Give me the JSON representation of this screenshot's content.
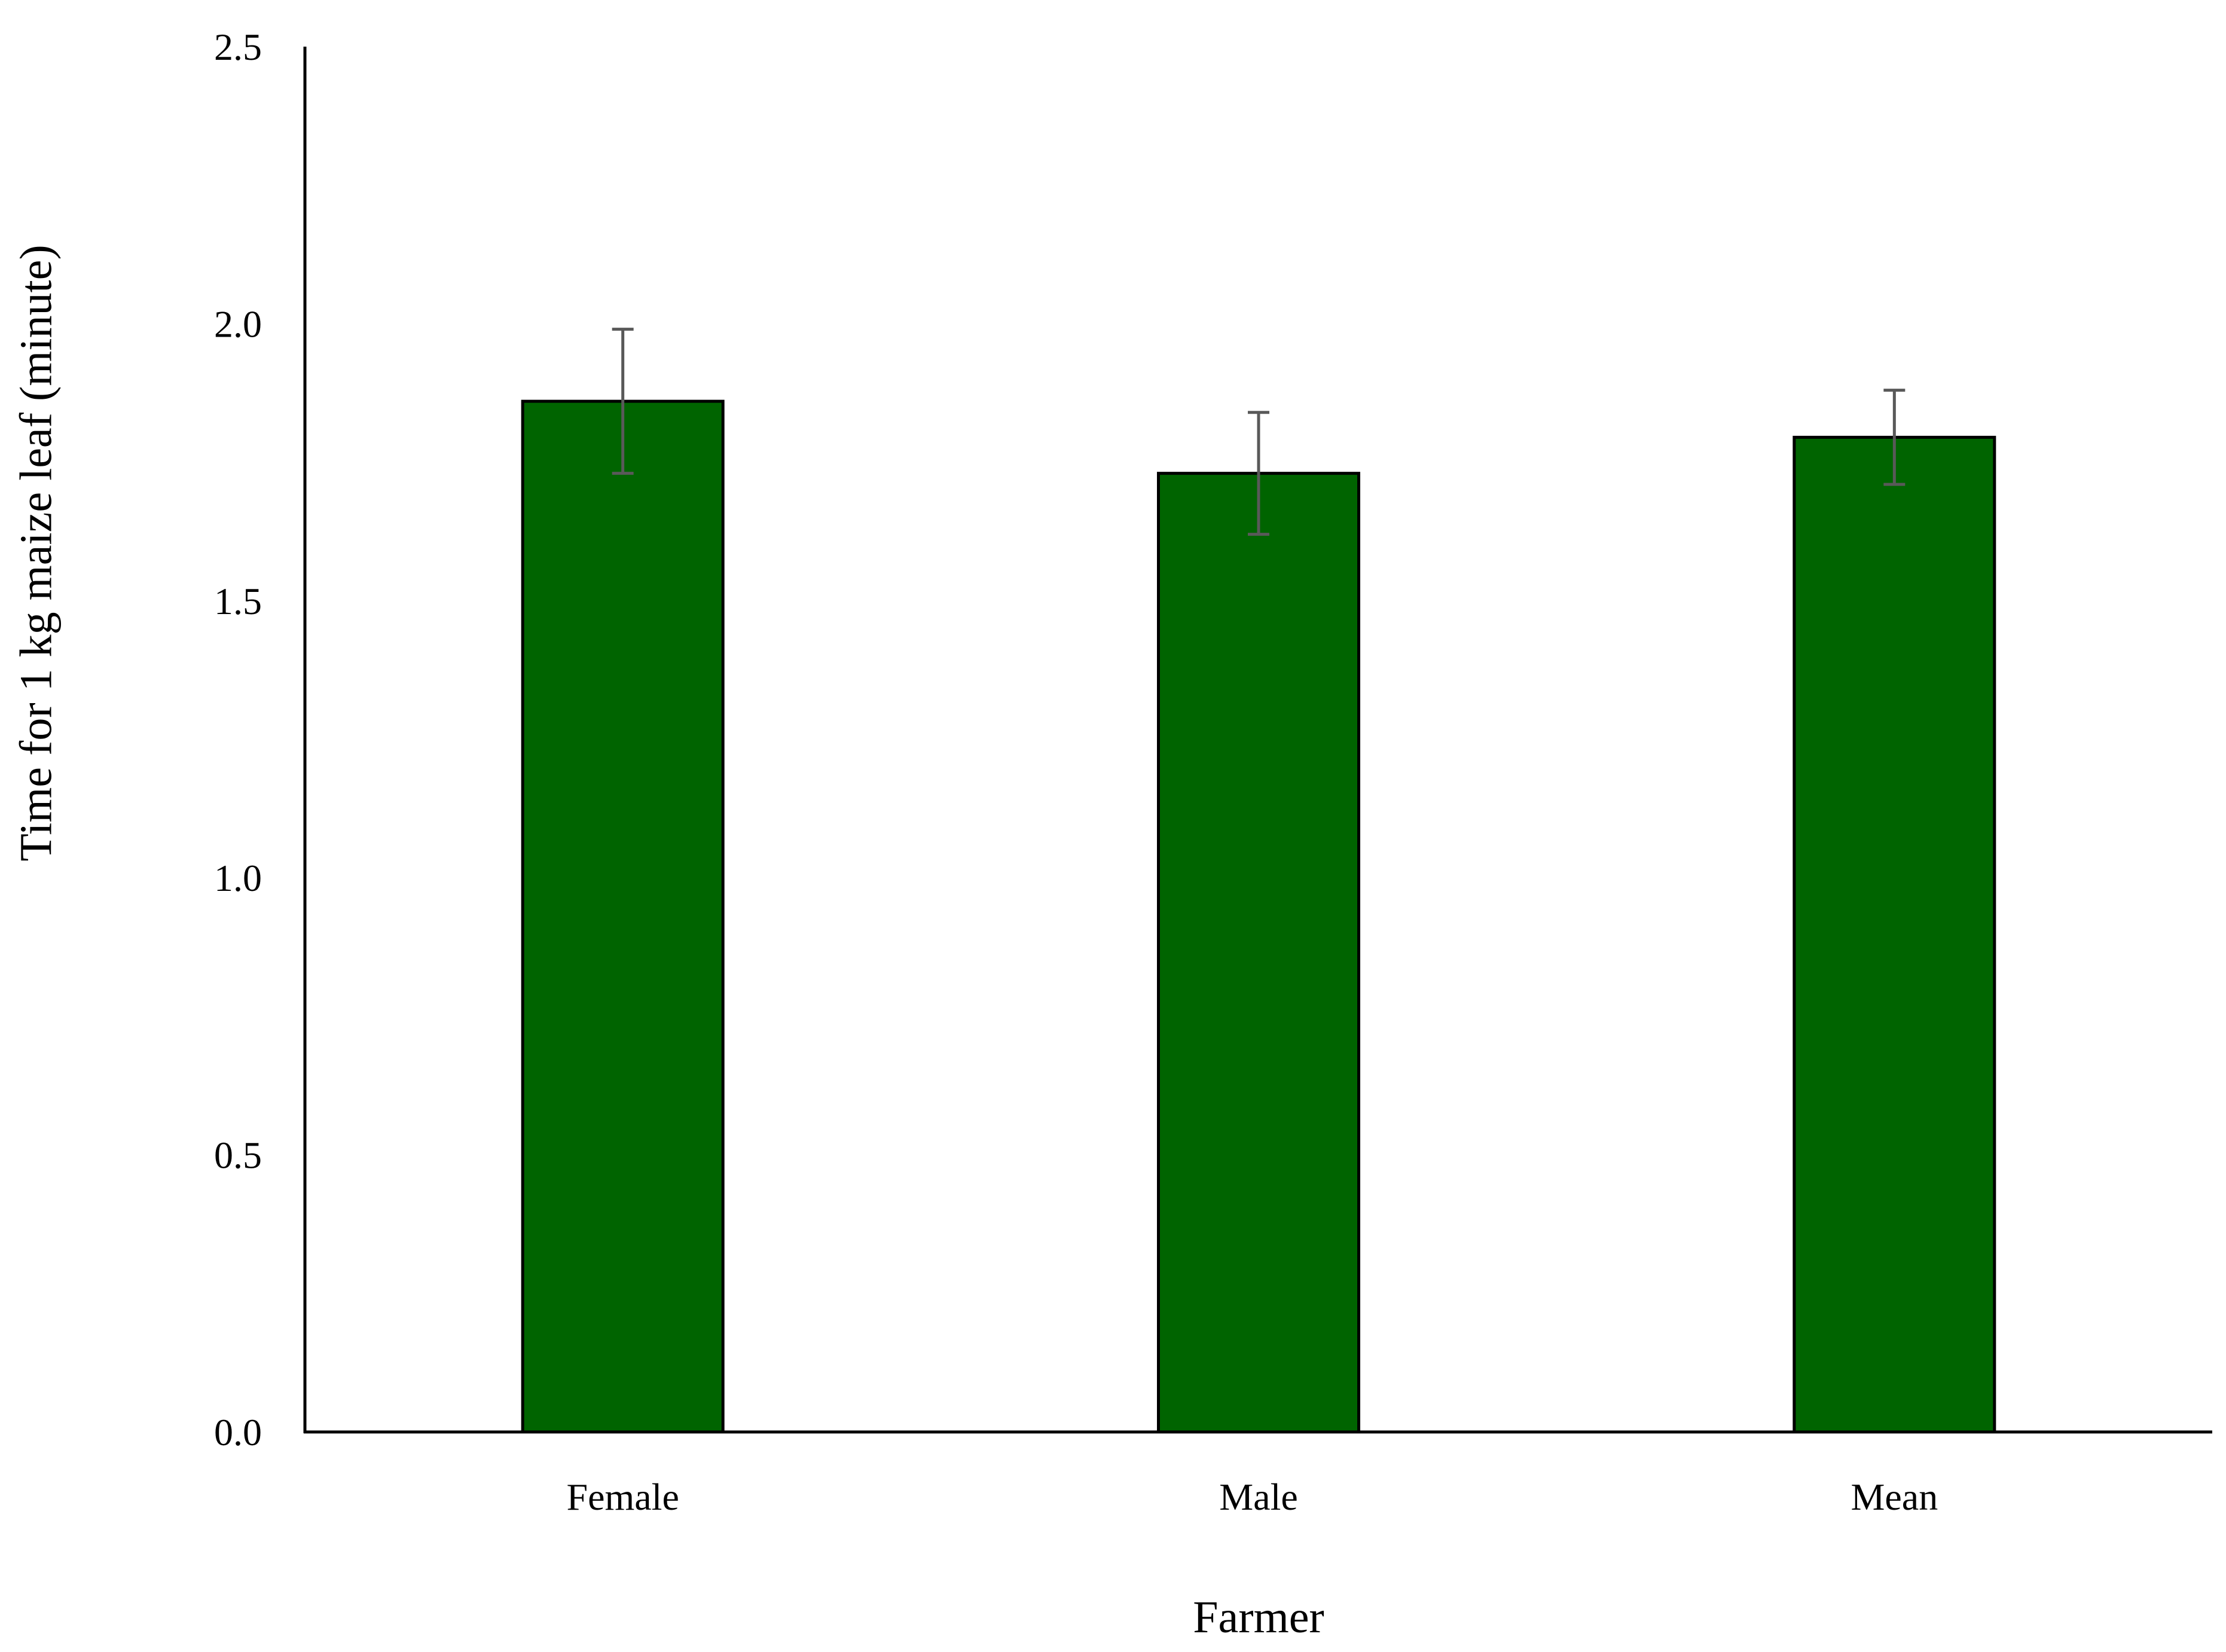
{
  "chart_data": {
    "type": "bar",
    "title": "",
    "xlabel": "Farmer",
    "ylabel": "Time for 1 kg maize leaf (minute)",
    "categories": [
      "Female",
      "Male",
      "Mean"
    ],
    "values": [
      1.86,
      1.73,
      1.795
    ],
    "error_low": [
      1.73,
      1.62,
      1.71
    ],
    "error_high": [
      1.99,
      1.84,
      1.88
    ],
    "ylim": [
      0,
      2.5
    ],
    "yticks": [
      "0.0",
      "0.5",
      "1.0",
      "1.5",
      "2.0",
      "2.5"
    ],
    "grid": false,
    "legend": "none",
    "colors": {
      "bar_fill": "#006400",
      "bar_stroke": "#000000",
      "error_bar": "#595959",
      "axis": "#000000"
    }
  }
}
